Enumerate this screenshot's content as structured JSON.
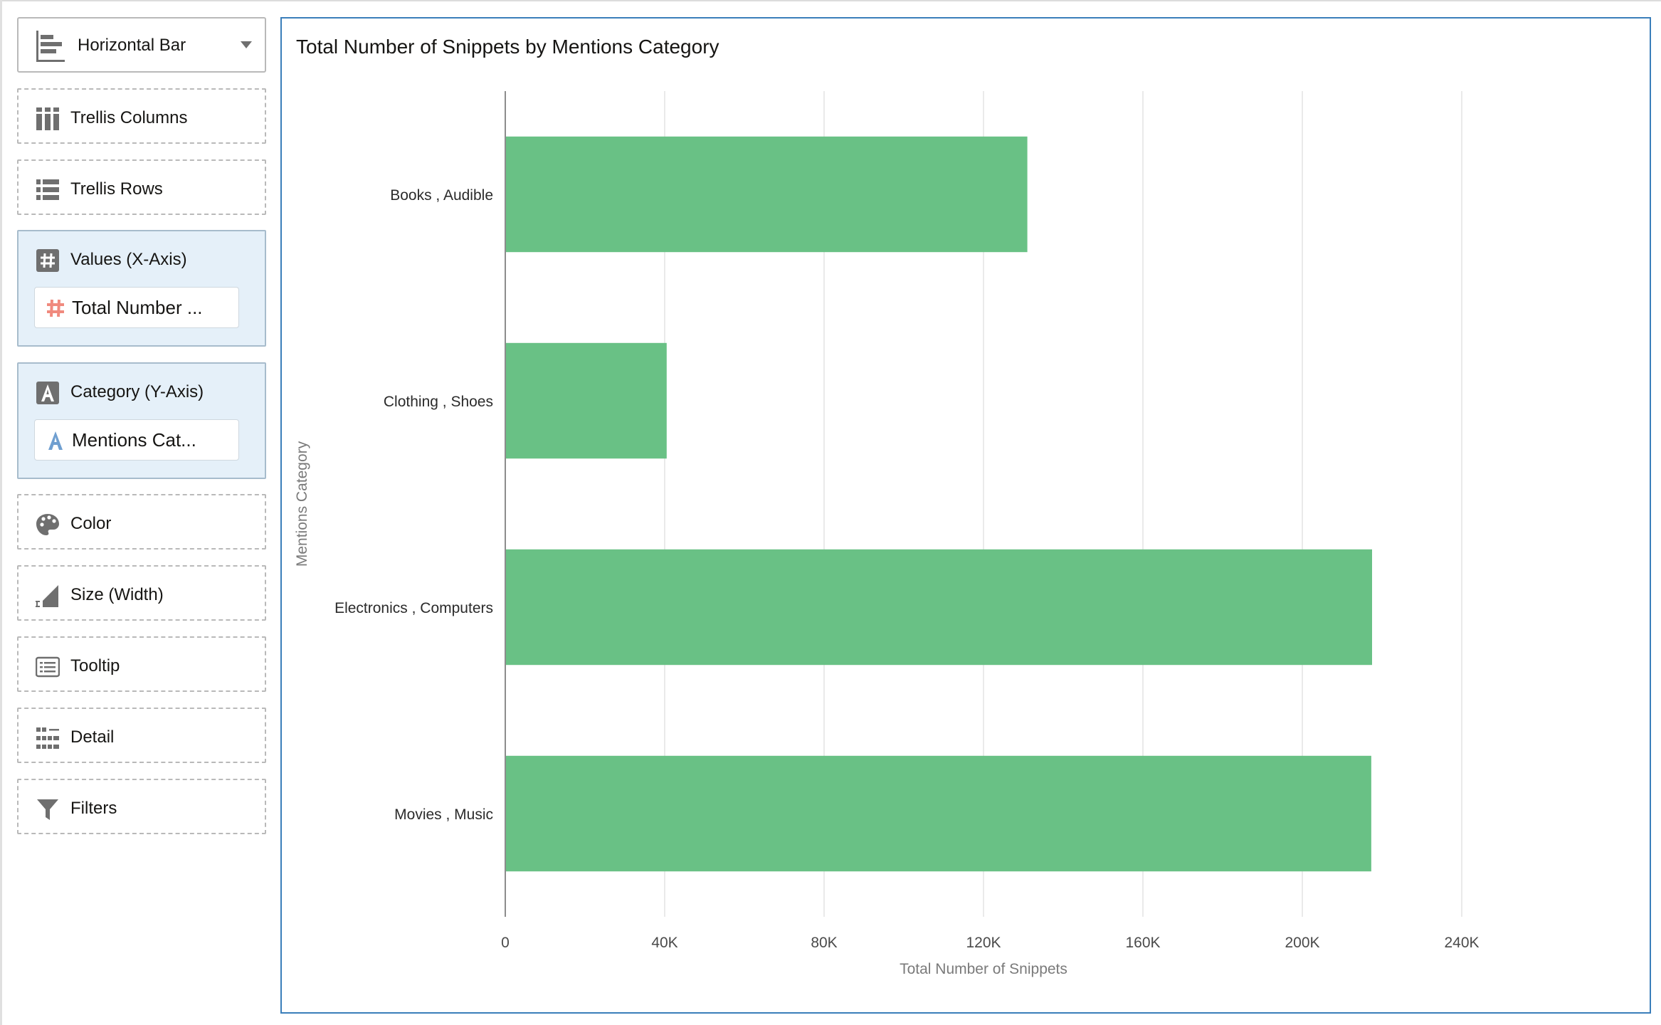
{
  "chart_type": {
    "label": "Horizontal Bar",
    "icon": "horizontal-bar-chart-icon"
  },
  "grammar": {
    "trellis_columns": {
      "label": "Trellis Columns",
      "icon": "trellis-columns-icon"
    },
    "trellis_rows": {
      "label": "Trellis Rows",
      "icon": "trellis-rows-icon"
    },
    "values": {
      "label": "Values (X-Axis)",
      "icon": "numeric-hash-icon",
      "field": "Total Number ...",
      "field_icon": "measure-hash-icon"
    },
    "category": {
      "label": "Category (Y-Axis)",
      "icon": "attribute-a-icon",
      "field": "Mentions Cat...",
      "field_icon": "attribute-a-icon"
    },
    "color": {
      "label": "Color",
      "icon": "palette-icon"
    },
    "size": {
      "label": "Size (Width)",
      "icon": "size-icon"
    },
    "tooltip": {
      "label": "Tooltip",
      "icon": "tooltip-icon"
    },
    "detail": {
      "label": "Detail",
      "icon": "detail-icon"
    },
    "filters": {
      "label": "Filters",
      "icon": "filter-icon"
    }
  },
  "colors": {
    "bar": "#69c185",
    "frame": "#3a7eba",
    "filled_zone": "#e5f0f9",
    "measure_icon": "#f08a7e",
    "attribute_icon": "#6f9fd0"
  },
  "chart_data": {
    "type": "bar",
    "orientation": "horizontal",
    "title": "Total Number of Snippets by Mentions Category",
    "xlabel": "Total Number of Snippets",
    "ylabel": "Mentions Category",
    "categories": [
      "Books , Audible",
      "Clothing , Shoes",
      "Electronics , Computers",
      "Movies , Music"
    ],
    "values": [
      131000,
      40500,
      217500,
      217300
    ],
    "xlim": [
      0,
      240000
    ],
    "xticks": [
      0,
      40000,
      80000,
      120000,
      160000,
      200000,
      240000
    ],
    "xtick_labels": [
      "0",
      "40K",
      "80K",
      "120K",
      "160K",
      "200K",
      "240K"
    ],
    "grid": "vertical"
  }
}
